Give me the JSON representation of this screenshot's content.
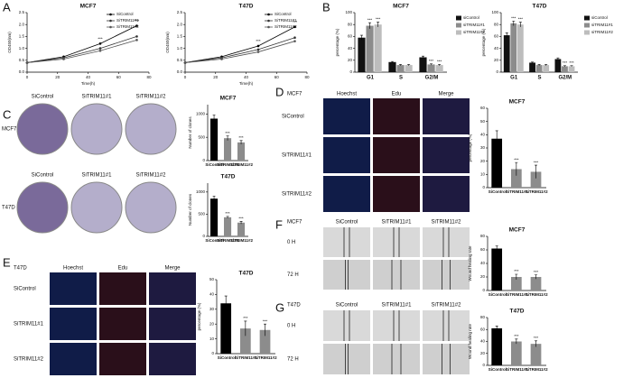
{
  "panel_letters": [
    "A",
    "B",
    "C",
    "D",
    "E",
    "F",
    "G"
  ],
  "chart_data": [
    {
      "type": "line",
      "title": "MCF7",
      "xlabel": "Time(h)",
      "ylabel": "OD450(nm)",
      "x": [
        0,
        24,
        48,
        72
      ],
      "xlim": [
        0,
        80
      ],
      "xticks": [
        0,
        20,
        40,
        60,
        80
      ],
      "ylim": [
        0,
        2.5
      ],
      "yticks": [
        {
          "value": 0,
          "label": "0.0"
        },
        {
          "value": 0.5,
          "label": "0.5"
        },
        {
          "value": 1,
          "label": "1.0"
        },
        {
          "value": 1.5,
          "label": "1.5"
        },
        {
          "value": 2,
          "label": "2.0"
        },
        {
          "value": 2.5,
          "label": "2.5"
        }
      ],
      "series": [
        {
          "name": "SiControl",
          "color": "#000000",
          "values": [
            0.4,
            0.65,
            1.2,
            1.95
          ],
          "annotations": [
            null,
            null,
            "***",
            "***"
          ]
        },
        {
          "name": "SiTRIM11#1",
          "color": "#333333",
          "values": [
            0.4,
            0.6,
            1.0,
            1.5
          ]
        },
        {
          "name": "SiTRIM11#2",
          "color": "#555555",
          "values": [
            0.4,
            0.55,
            0.9,
            1.35
          ]
        }
      ]
    },
    {
      "type": "line",
      "title": "T47D",
      "xlabel": "Time(h)",
      "ylabel": "OD450(nm)",
      "x": [
        0,
        24,
        48,
        72
      ],
      "xlim": [
        0,
        80
      ],
      "xticks": [
        0,
        20,
        40,
        60,
        80
      ],
      "ylim": [
        0,
        2.5
      ],
      "yticks": [
        {
          "value": 0,
          "label": "0.0"
        },
        {
          "value": 0.5,
          "label": "0.5"
        },
        {
          "value": 1,
          "label": "1.0"
        },
        {
          "value": 1.5,
          "label": "1.5"
        },
        {
          "value": 2,
          "label": "2.0"
        },
        {
          "value": 2.5,
          "label": "2.5"
        }
      ],
      "series": [
        {
          "name": "SiControl",
          "color": "#000000",
          "values": [
            0.4,
            0.65,
            1.1,
            1.9
          ],
          "annotations": [
            null,
            null,
            "***",
            "***"
          ]
        },
        {
          "name": "SiTRIM11#1",
          "color": "#333333",
          "values": [
            0.4,
            0.6,
            0.95,
            1.45
          ]
        },
        {
          "name": "SiTRIM11#2",
          "color": "#555555",
          "values": [
            0.4,
            0.55,
            0.85,
            1.3
          ]
        }
      ]
    },
    {
      "type": "bar",
      "title": "MCF7",
      "ylabel": "percentage (%)",
      "categories": [
        "G1",
        "S",
        "G2/M"
      ],
      "ylim": [
        0,
        100
      ],
      "yticks": [
        0,
        20,
        40,
        60,
        80,
        100
      ],
      "series": [
        {
          "name": "siControl",
          "color": "#111111",
          "values": [
            58,
            17,
            25
          ],
          "errors": [
            4,
            1,
            2
          ]
        },
        {
          "name": "siTRIM11#1",
          "color": "#8c8c8c",
          "values": [
            78,
            12,
            13
          ],
          "errors": [
            5,
            1,
            1
          ],
          "annotations": [
            "***",
            null,
            "***"
          ]
        },
        {
          "name": "siTRIM11#2",
          "color": "#bdbdbd",
          "values": [
            80,
            12,
            12
          ],
          "errors": [
            4,
            1,
            1
          ],
          "annotations": [
            "***",
            null,
            "***"
          ]
        }
      ]
    },
    {
      "type": "bar",
      "title": "T47D",
      "ylabel": "percentage (%)",
      "categories": [
        "G1",
        "S",
        "G2/M"
      ],
      "ylim": [
        0,
        100
      ],
      "yticks": [
        0,
        20,
        40,
        60,
        80,
        100
      ],
      "series": [
        {
          "name": "siControl",
          "color": "#111111",
          "values": [
            62,
            16,
            22
          ],
          "errors": [
            4,
            1,
            2
          ]
        },
        {
          "name": "siTRIM11#1",
          "color": "#8c8c8c",
          "values": [
            82,
            12,
            10
          ],
          "errors": [
            4,
            1,
            1
          ],
          "annotations": [
            "***",
            null,
            "***"
          ]
        },
        {
          "name": "siTRIM11#2",
          "color": "#bdbdbd",
          "values": [
            80,
            12,
            10
          ],
          "errors": [
            4,
            1,
            1
          ],
          "annotations": [
            "***",
            null,
            "***"
          ]
        }
      ]
    },
    {
      "type": "bar",
      "title": "MCF7",
      "ylabel": "Number of clones",
      "categories": [
        "SiControl",
        "SiTRIM11#1",
        "SiTRIM11#2"
      ],
      "ylim": [
        0,
        1200
      ],
      "yticks": [
        0,
        500,
        1000
      ],
      "series": [
        {
          "colors": [
            "#000000",
            "#8c8c8c",
            "#8c8c8c"
          ],
          "values": [
            900,
            480,
            390
          ],
          "errors": [
            80,
            50,
            40
          ],
          "annotations": [
            null,
            "***",
            "***"
          ]
        }
      ]
    },
    {
      "type": "bar",
      "title": "T47D",
      "ylabel": "Number of clones",
      "categories": [
        "SiControl",
        "SiTRIM11#1",
        "SiTRIM11#2"
      ],
      "ylim": [
        0,
        1200
      ],
      "yticks": [
        0,
        500,
        1000
      ],
      "series": [
        {
          "colors": [
            "#000000",
            "#8c8c8c",
            "#8c8c8c"
          ],
          "values": [
            850,
            430,
            310
          ],
          "errors": [
            60,
            20,
            30
          ],
          "annotations": [
            null,
            "***",
            "***"
          ]
        }
      ]
    },
    {
      "type": "bar",
      "title": "MCF7",
      "ylabel": "percentage (%)",
      "categories": [
        "SiControl",
        "SiTRIM11#1",
        "SiTRIM11#2"
      ],
      "ylim": [
        0,
        60
      ],
      "yticks": [
        0,
        10,
        20,
        30,
        40,
        50,
        60
      ],
      "series": [
        {
          "colors": [
            "#000000",
            "#8c8c8c",
            "#8c8c8c"
          ],
          "values": [
            37,
            14,
            12
          ],
          "errors": [
            6,
            5,
            5
          ],
          "annotations": [
            null,
            "***",
            "***"
          ]
        }
      ]
    },
    {
      "type": "bar",
      "title": "T47D",
      "ylabel": "percentage (%)",
      "categories": [
        "SiControl",
        "SiTRIM11#1",
        "SiTRIM11#2"
      ],
      "ylim": [
        0,
        50
      ],
      "yticks": [
        0,
        10,
        20,
        30,
        40,
        50
      ],
      "series": [
        {
          "colors": [
            "#000000",
            "#8c8c8c",
            "#8c8c8c"
          ],
          "values": [
            34,
            17,
            16
          ],
          "errors": [
            5,
            5,
            4
          ],
          "annotations": [
            null,
            "***",
            "***"
          ]
        }
      ]
    },
    {
      "type": "bar",
      "title": "MCF7",
      "ylabel": "Wound healing rate",
      "categories": [
        "SiControl",
        "SiTRIM11#1",
        "SiTRIM11#2"
      ],
      "ylim": [
        0,
        80
      ],
      "yticks": [
        0,
        20,
        40,
        60,
        80
      ],
      "series": [
        {
          "colors": [
            "#000000",
            "#8c8c8c",
            "#8c8c8c"
          ],
          "values": [
            62,
            20,
            20
          ],
          "errors": [
            4,
            4,
            3
          ],
          "annotations": [
            null,
            "***",
            "***"
          ]
        }
      ]
    },
    {
      "type": "bar",
      "title": "T47D",
      "ylabel": "Wound healing rate",
      "categories": [
        "SiControl",
        "SiTRIM11#1",
        "SiTRIM11#2"
      ],
      "ylim": [
        0,
        80
      ],
      "yticks": [
        0,
        20,
        40,
        60,
        80
      ],
      "series": [
        {
          "colors": [
            "#000000",
            "#8c8c8c",
            "#8c8c8c"
          ],
          "values": [
            62,
            40,
            36
          ],
          "errors": [
            4,
            4,
            5
          ],
          "annotations": [
            null,
            "***",
            "***"
          ]
        }
      ]
    }
  ],
  "image_panels": [
    {
      "columns": [
        "SiControl",
        "SiTRIM11#1",
        "SiTRIM11#2"
      ],
      "rows": [
        "MCF7",
        "T47D"
      ]
    },
    {
      "title": "MCF7",
      "columns": [
        "Hoechst",
        "Edu",
        "Merge"
      ],
      "rows": [
        "SiControl",
        "SiTRIM11#1",
        "SiTRIM11#2"
      ]
    },
    {
      "title": "T47D",
      "columns": [
        "Hoechst",
        "Edu",
        "Merge"
      ],
      "rows": [
        "SiControl",
        "SiTRIM11#1",
        "SiTRIM11#2"
      ]
    },
    {
      "title": "MCF7",
      "columns": [
        "SiControl",
        "SiTRIM11#1",
        "SiTRIM11#2"
      ],
      "rows": [
        "0 H",
        "72 H"
      ]
    },
    {
      "title": "T47D",
      "columns": [
        "SiControl",
        "SiTRIM11#1",
        "SiTRIM11#2"
      ],
      "rows": [
        "0 H",
        "72 H"
      ]
    }
  ]
}
